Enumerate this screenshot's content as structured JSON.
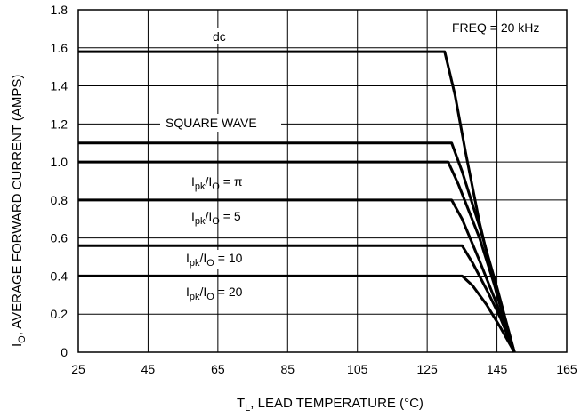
{
  "chart_data": {
    "type": "line",
    "xlabel": "T",
    "xlabel_sub": "L",
    "xlabel_rest": ", LEAD TEMPERATURE (°C)",
    "ylabel": "I",
    "ylabel_sub": "O",
    "ylabel_rest": ", AVERAGE FORWARD CURRENT (AMPS)",
    "xlim": [
      25,
      165
    ],
    "ylim": [
      0,
      1.8
    ],
    "xticks": [
      25,
      45,
      65,
      85,
      105,
      125,
      145,
      165
    ],
    "yticks": [
      0,
      0.2,
      0.4,
      0.6,
      0.8,
      1.0,
      1.2,
      1.4,
      1.6,
      1.8
    ],
    "ytick_labels": [
      "0",
      "0.2",
      "0.4",
      "0.6",
      "0.8",
      "1.0",
      "1.2",
      "1.4",
      "1.6",
      "1.8"
    ],
    "grid": true,
    "annotation": "FREQ = 20 kHz",
    "series": [
      {
        "name": "dc",
        "x": [
          25,
          130,
          133,
          136,
          140,
          145,
          150
        ],
        "y": [
          1.58,
          1.58,
          1.35,
          1.05,
          0.68,
          0.3,
          0
        ]
      },
      {
        "name": "SQUARE WAVE",
        "x": [
          25,
          132,
          135,
          140,
          145,
          150
        ],
        "y": [
          1.1,
          1.1,
          0.95,
          0.66,
          0.34,
          0
        ]
      },
      {
        "name": "π",
        "x": [
          25,
          131,
          134,
          140,
          145,
          150
        ],
        "y": [
          1.0,
          1.0,
          0.88,
          0.6,
          0.31,
          0
        ]
      },
      {
        "name": "5",
        "x": [
          25,
          132,
          135,
          140,
          145,
          150
        ],
        "y": [
          0.8,
          0.8,
          0.7,
          0.48,
          0.25,
          0
        ]
      },
      {
        "name": "10",
        "x": [
          25,
          135,
          138,
          142,
          146,
          150
        ],
        "y": [
          0.56,
          0.56,
          0.47,
          0.33,
          0.18,
          0
        ]
      },
      {
        "name": "20",
        "x": [
          25,
          135,
          138,
          142,
          146,
          150
        ],
        "y": [
          0.4,
          0.4,
          0.35,
          0.25,
          0.13,
          0
        ]
      }
    ],
    "curve_labels": {
      "dc": "dc",
      "square": "SQUARE WAVE",
      "ipk": "I",
      "pk": "pk",
      "slash_io": "/I",
      "o": "O",
      "eq_pi": " = π",
      "eq_5": " = 5",
      "eq_10": " = 10",
      "eq_20": " = 20"
    }
  }
}
